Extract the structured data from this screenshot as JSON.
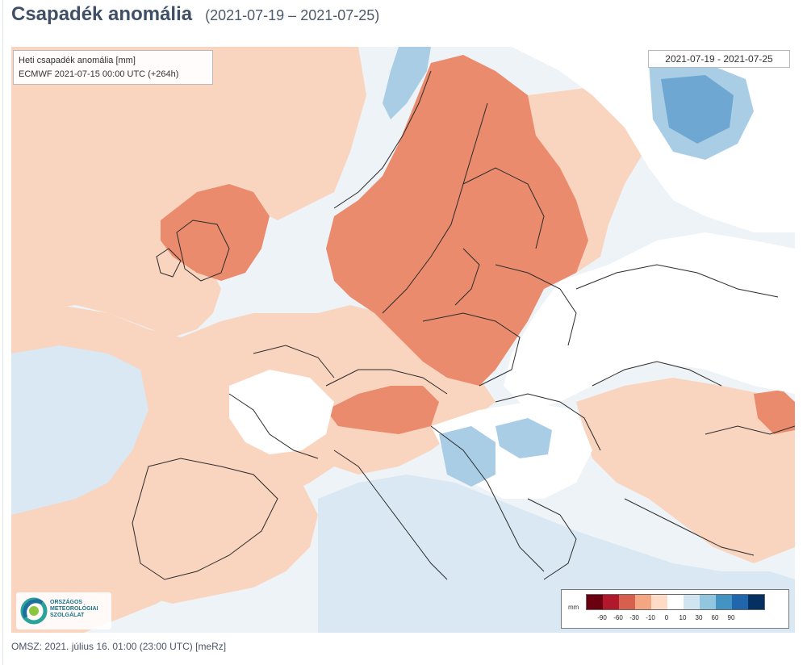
{
  "page": {
    "title": "Csapadék anomália",
    "date_range": "(2021-07-19 – 2021-07-25)",
    "footer": "OMSZ: 2021. július 16. 01:00 (23:00  UTC)  [meRz]"
  },
  "map": {
    "info_line1": "Heti csapadék anomália [mm]",
    "info_line2": "ECMWF 2021-07-15 00:00 UTC (+264h)",
    "valid_dates": "2021-07-19 - 2021-07-25",
    "colors": {
      "dry_strong": "#e98b6c",
      "dry_light": "#f9d4bf",
      "neutral": "#ffffff",
      "wet_light": "#d9e8f3",
      "wet_medium": "#a9cde4",
      "wet_strong": "#6ea8d2",
      "background_sea": "#eef3f7",
      "borders": "#2b2b2b"
    }
  },
  "legend": {
    "unit": "mm",
    "ticks": [
      "-90",
      "-60",
      "-30",
      "-10",
      "0",
      "10",
      "30",
      "60",
      "90"
    ],
    "colors": [
      "#6b0010",
      "#b2182b",
      "#d6604d",
      "#f4a582",
      "#fddbc7",
      "#ffffff",
      "#d1e5f0",
      "#92c5de",
      "#4393c3",
      "#2166ac",
      "#053061"
    ]
  },
  "logo": {
    "line1": "ORSZÁGOS",
    "line2": "METEOROLÓGIAI",
    "line3": "SZOLGÁLAT"
  }
}
